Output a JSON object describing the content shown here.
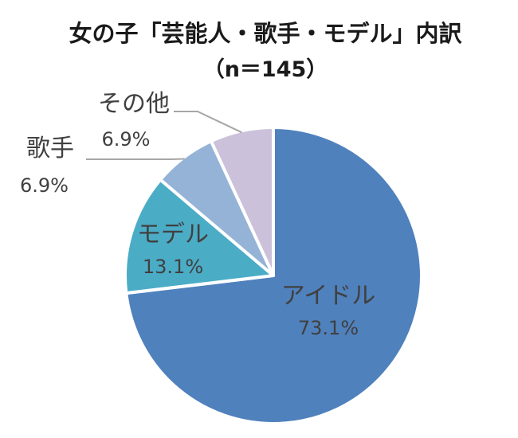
{
  "chart_data": {
    "type": "pie",
    "title": "女の子「芸能人・歌手・モデル」内訳",
    "subtitle": "（n＝145）",
    "slices": [
      {
        "label": "アイドル",
        "value": 73.1,
        "value_label": "73.1%",
        "color": "#4f81bd"
      },
      {
        "label": "モデル",
        "value": 13.1,
        "value_label": "13.1%",
        "color": "#4bacc6"
      },
      {
        "label": "歌手",
        "value": 6.9,
        "value_label": "6.9%",
        "color": "#95b3d7"
      },
      {
        "label": "その他",
        "value": 6.9,
        "value_label": "6.9%",
        "color": "#ccc1da"
      }
    ],
    "legend": "none",
    "start": "12 o'clock, clockwise"
  }
}
